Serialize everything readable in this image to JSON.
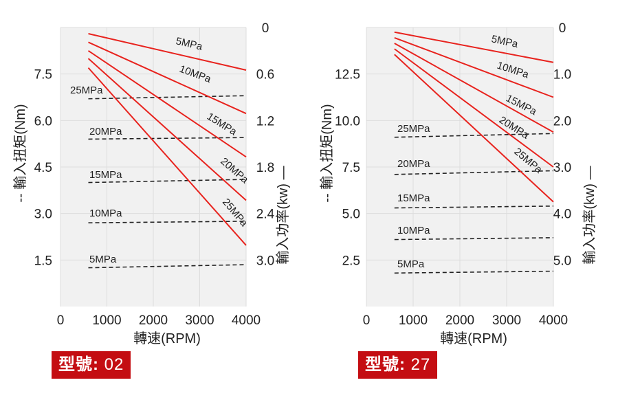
{
  "chart_data": [
    {
      "type": "line",
      "model_label": "型號:",
      "model_number": "02",
      "xlabel": "轉速(RPM)",
      "ylabel_left": "輸入扭矩(Nm)",
      "ylabel_left_prefix": "--",
      "ylabel_right": "輸入功率(kw)",
      "ylabel_right_suffix": "—",
      "x_ticks": [
        "0",
        "1000",
        "2000",
        "3000",
        "4000"
      ],
      "xlim": [
        0,
        4000
      ],
      "left_ticks": [
        {
          "label": "7.5",
          "value": 7.5
        },
        {
          "label": "6.0",
          "value": 6.0
        },
        {
          "label": "4.5",
          "value": 4.5
        },
        {
          "label": "3.0",
          "value": 3.0
        },
        {
          "label": "1.5",
          "value": 1.5
        }
      ],
      "ylim_left": [
        0,
        9.0
      ],
      "right_ticks": [
        {
          "label": "0",
          "value": 0
        },
        {
          "label": "0.6",
          "value": 0.6
        },
        {
          "label": "1.2",
          "value": 1.2
        },
        {
          "label": "1.8",
          "value": 1.8
        },
        {
          "label": "2.4",
          "value": 2.4
        },
        {
          "label": "3.0",
          "value": 3.0
        }
      ],
      "ylim_right_inverted": [
        0,
        3.6
      ],
      "grid": true,
      "power_series": [
        {
          "name": "5MPa",
          "x": [
            600,
            4000
          ],
          "y": [
            0.08,
            0.55
          ]
        },
        {
          "name": "10MPa",
          "x": [
            600,
            4000
          ],
          "y": [
            0.19,
            1.11
          ]
        },
        {
          "name": "15MPa",
          "x": [
            600,
            4000
          ],
          "y": [
            0.3,
            1.67
          ]
        },
        {
          "name": "20MPa",
          "x": [
            600,
            4000
          ],
          "y": [
            0.4,
            2.23
          ]
        },
        {
          "name": "25MPa",
          "x": [
            600,
            4000
          ],
          "y": [
            0.52,
            2.81
          ]
        }
      ],
      "torque_series": [
        {
          "name": "25MPa",
          "x": [
            600,
            4000
          ],
          "y": [
            6.7,
            6.8
          ]
        },
        {
          "name": "20MPa",
          "x": [
            600,
            4000
          ],
          "y": [
            5.4,
            5.45
          ]
        },
        {
          "name": "15MPa",
          "x": [
            600,
            4000
          ],
          "y": [
            4.0,
            4.1
          ]
        },
        {
          "name": "10MPa",
          "x": [
            600,
            4000
          ],
          "y": [
            2.7,
            2.75
          ]
        },
        {
          "name": "5MPa",
          "x": [
            600,
            4000
          ],
          "y": [
            1.25,
            1.35
          ]
        }
      ]
    },
    {
      "type": "line",
      "model_label": "型號:",
      "model_number": "27",
      "xlabel": "轉速(RPM)",
      "ylabel_left": "輸入扭矩(Nm)",
      "ylabel_left_prefix": "--",
      "ylabel_right": "輸入功率(kw)",
      "ylabel_right_suffix": "—",
      "x_ticks": [
        "0",
        "1000",
        "2000",
        "3000",
        "4000"
      ],
      "xlim": [
        0,
        4000
      ],
      "left_ticks": [
        {
          "label": "12.5",
          "value": 12.5
        },
        {
          "label": "10.0",
          "value": 10.0
        },
        {
          "label": "7.5",
          "value": 7.5
        },
        {
          "label": "5.0",
          "value": 5.0
        },
        {
          "label": "2.5",
          "value": 2.5
        }
      ],
      "ylim_left": [
        0,
        15.0
      ],
      "right_ticks": [
        {
          "label": "0",
          "value": 0
        },
        {
          "label": "1.0",
          "value": 1.0
        },
        {
          "label": "2.0",
          "value": 2.0
        },
        {
          "label": "3.0",
          "value": 3.0
        },
        {
          "label": "4.0",
          "value": 4.0
        },
        {
          "label": "5.0",
          "value": 5.0
        }
      ],
      "ylim_right_inverted": [
        0,
        6.0
      ],
      "grid": true,
      "power_series": [
        {
          "name": "5MPa",
          "x": [
            600,
            4000
          ],
          "y": [
            0.1,
            0.75
          ]
        },
        {
          "name": "10MPa",
          "x": [
            600,
            4000
          ],
          "y": [
            0.22,
            1.5
          ]
        },
        {
          "name": "15MPa",
          "x": [
            600,
            4000
          ],
          "y": [
            0.34,
            2.25
          ]
        },
        {
          "name": "20MPa",
          "x": [
            600,
            4000
          ],
          "y": [
            0.46,
            3.0
          ]
        },
        {
          "name": "25MPa",
          "x": [
            600,
            4000
          ],
          "y": [
            0.58,
            3.75
          ]
        }
      ],
      "torque_series": [
        {
          "name": "25MPa",
          "x": [
            600,
            4000
          ],
          "y": [
            9.1,
            9.3
          ]
        },
        {
          "name": "20MPa",
          "x": [
            600,
            4000
          ],
          "y": [
            7.1,
            7.3
          ]
        },
        {
          "name": "15MPa",
          "x": [
            600,
            4000
          ],
          "y": [
            5.3,
            5.4
          ]
        },
        {
          "name": "10MPa",
          "x": [
            600,
            4000
          ],
          "y": [
            3.6,
            3.7
          ]
        },
        {
          "name": "5MPa",
          "x": [
            600,
            4000
          ],
          "y": [
            1.8,
            1.9
          ]
        }
      ]
    }
  ],
  "colors": {
    "power_line": "#e8231e",
    "torque_line": "#222222",
    "grid": "#dddddd",
    "panel": "#f1f1f1",
    "badge": "#c40d12"
  }
}
